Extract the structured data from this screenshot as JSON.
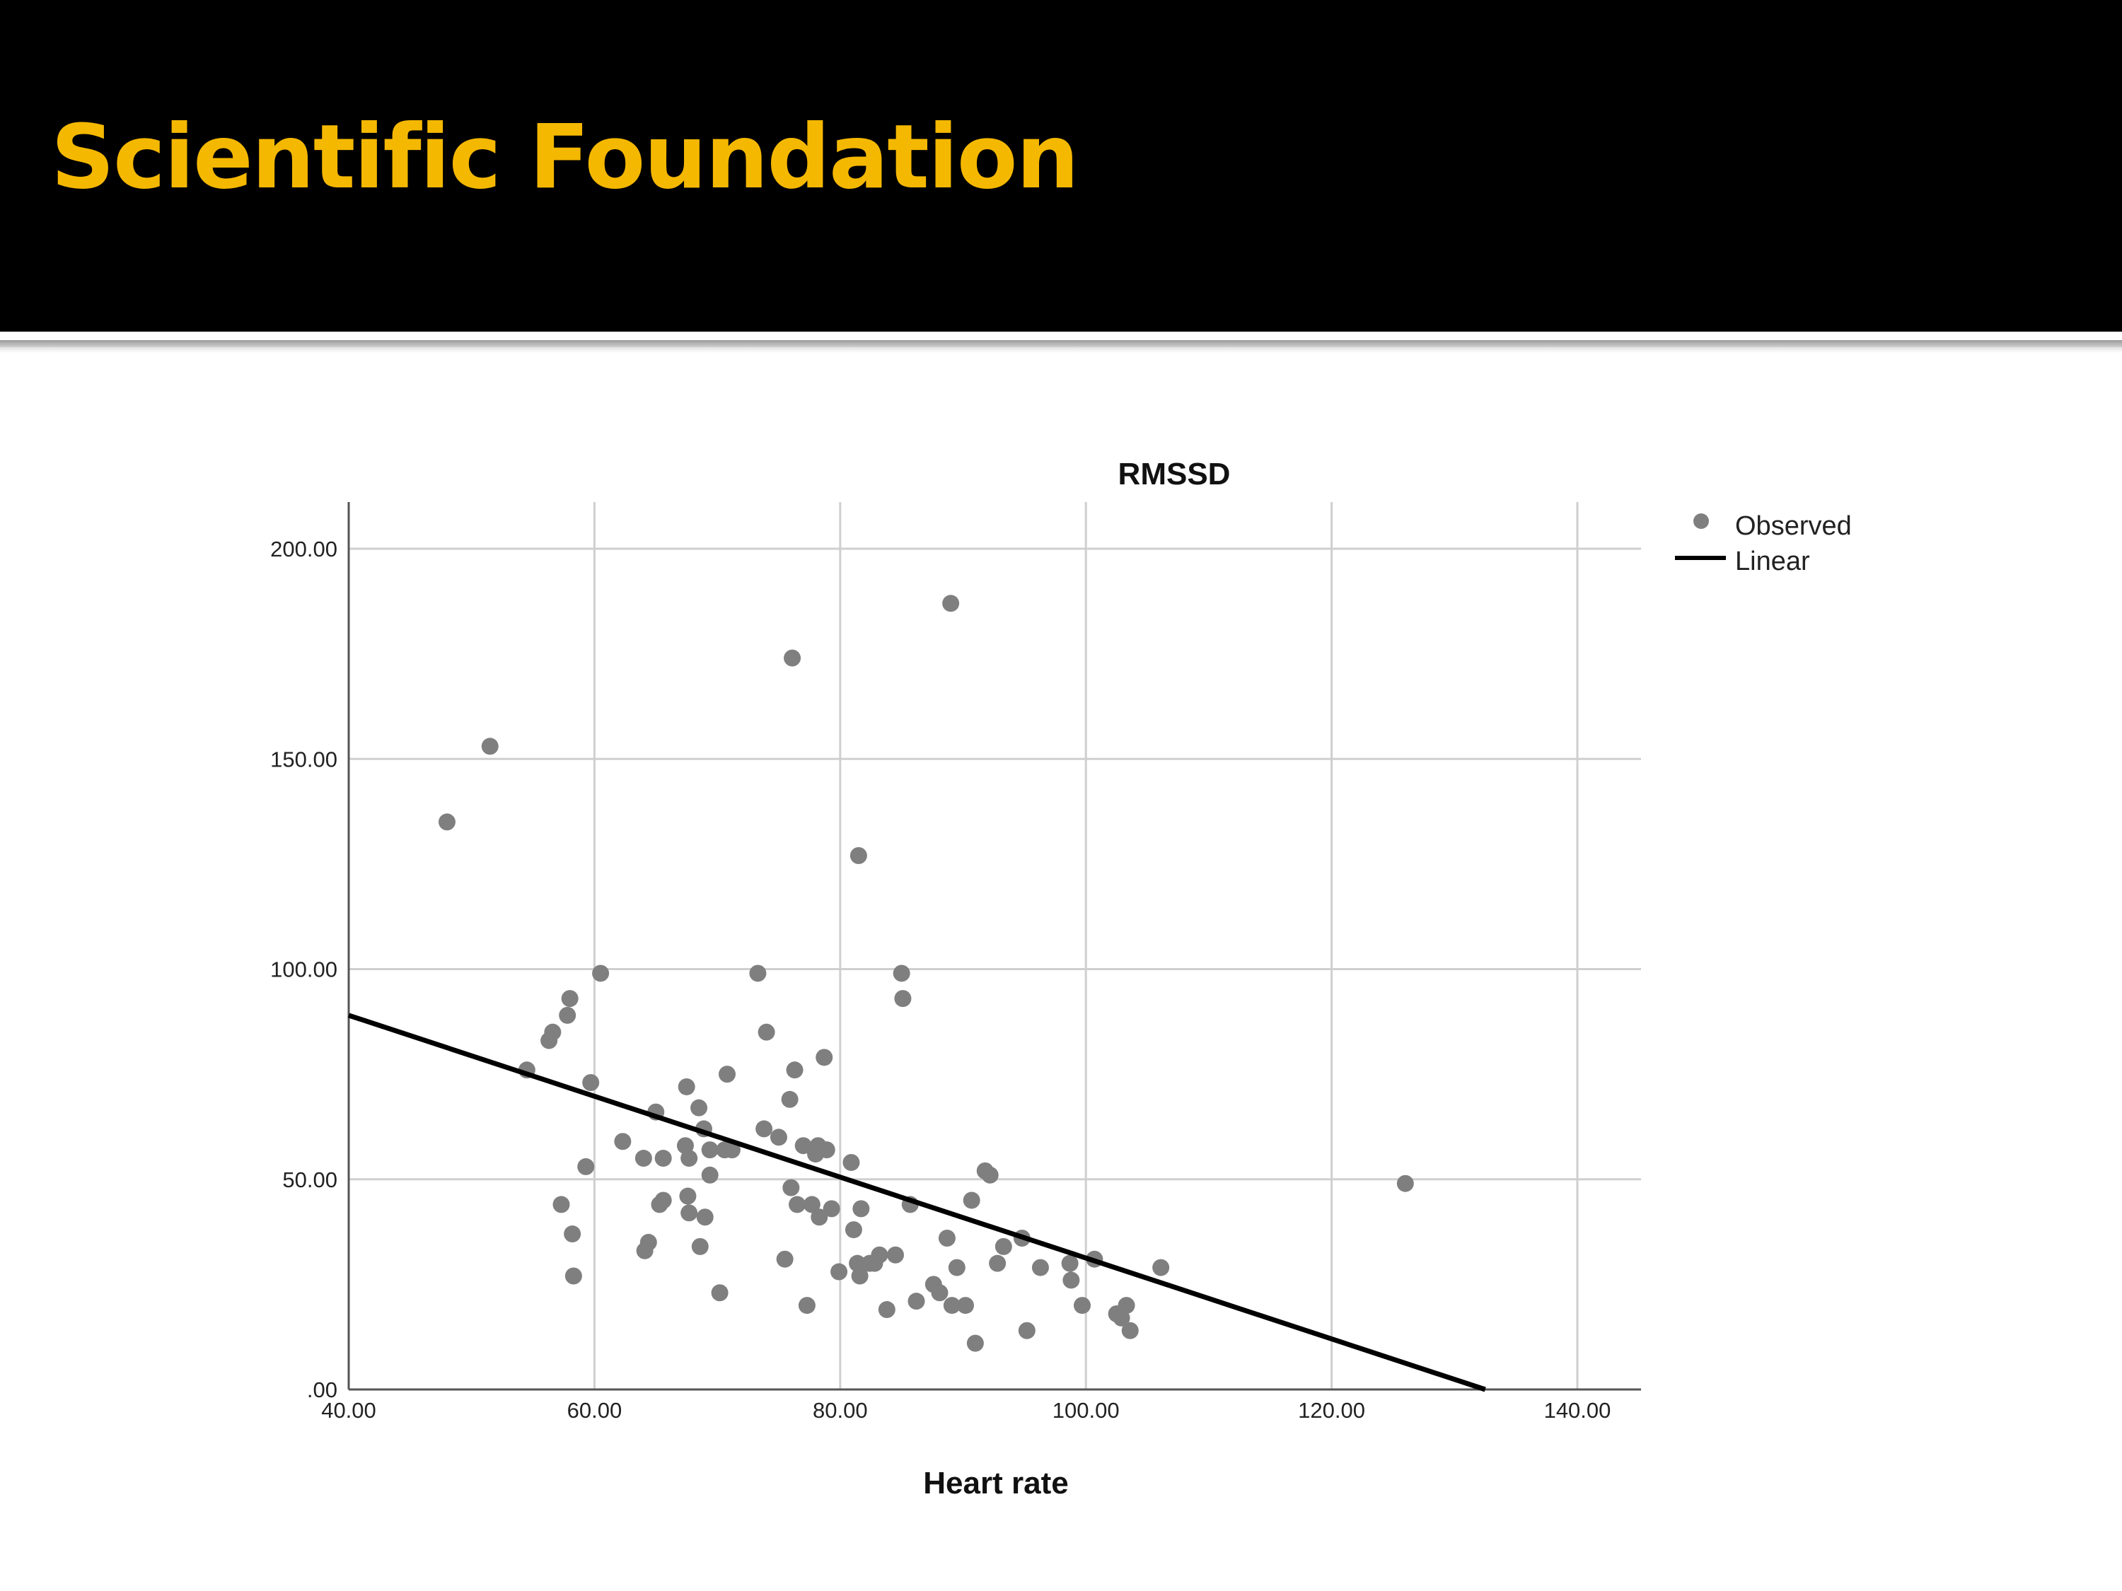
{
  "slide": {
    "title": "Scientific Foundation",
    "title_color": "#f5b800",
    "header_background": "#000000"
  },
  "chart_data": {
    "type": "scatter",
    "title": "RMSSD",
    "xlabel": "Heart rate",
    "ylabel": "",
    "xlim": [
      40,
      140
    ],
    "ylim": [
      0,
      210
    ],
    "x_ticks": [
      "40.00",
      "60.00",
      "80.00",
      "100.00",
      "120.00",
      "140.00"
    ],
    "y_ticks": [
      ".00",
      "50.00",
      "100.00",
      "150.00",
      "200.00"
    ],
    "grid": true,
    "legend_position": "top-right",
    "series": [
      {
        "name": "Observed",
        "kind": "scatter",
        "color": "#7f7f7f",
        "points": [
          [
            48,
            135
          ],
          [
            51.5,
            153
          ],
          [
            54.5,
            76
          ],
          [
            56.3,
            83
          ],
          [
            56.6,
            85
          ],
          [
            57.3,
            44
          ],
          [
            57.8,
            89
          ],
          [
            58,
            93
          ],
          [
            58.2,
            37
          ],
          [
            58.3,
            27
          ],
          [
            59.3,
            53
          ],
          [
            59.7,
            73
          ],
          [
            60.5,
            99
          ],
          [
            62.3,
            59
          ],
          [
            64,
            55
          ],
          [
            64.1,
            33
          ],
          [
            64.4,
            35
          ],
          [
            65,
            66
          ],
          [
            65.3,
            44
          ],
          [
            65.6,
            45
          ],
          [
            65.6,
            55
          ],
          [
            67.4,
            58
          ],
          [
            67.5,
            72
          ],
          [
            67.6,
            46
          ],
          [
            67.7,
            55
          ],
          [
            67.7,
            42
          ],
          [
            68.5,
            67
          ],
          [
            68.6,
            34
          ],
          [
            68.9,
            62
          ],
          [
            69,
            41
          ],
          [
            69.4,
            57
          ],
          [
            69.4,
            51
          ],
          [
            70.2,
            23
          ],
          [
            70.6,
            57
          ],
          [
            70.8,
            75
          ],
          [
            71.2,
            57
          ],
          [
            73.3,
            99
          ],
          [
            73.8,
            62
          ],
          [
            74,
            85
          ],
          [
            75,
            60
          ],
          [
            75.5,
            31
          ],
          [
            75.9,
            69
          ],
          [
            76,
            48
          ],
          [
            76.1,
            174
          ],
          [
            76.3,
            76
          ],
          [
            76.5,
            44
          ],
          [
            77,
            58
          ],
          [
            77.3,
            20
          ],
          [
            77.7,
            44
          ],
          [
            78,
            56
          ],
          [
            78.2,
            58
          ],
          [
            78.3,
            41
          ],
          [
            78.7,
            79
          ],
          [
            78.9,
            57
          ],
          [
            79.3,
            43
          ],
          [
            79.9,
            28
          ],
          [
            80.9,
            54
          ],
          [
            81.1,
            38
          ],
          [
            81.4,
            30
          ],
          [
            81.5,
            127
          ],
          [
            81.6,
            27
          ],
          [
            81.7,
            43
          ],
          [
            82.4,
            30
          ],
          [
            82.8,
            30
          ],
          [
            83.2,
            32
          ],
          [
            83.8,
            19
          ],
          [
            84.5,
            32
          ],
          [
            85,
            99
          ],
          [
            85.1,
            93
          ],
          [
            85.7,
            44
          ],
          [
            86.2,
            21
          ],
          [
            87.6,
            25
          ],
          [
            88.1,
            23
          ],
          [
            88.7,
            36
          ],
          [
            89,
            187
          ],
          [
            89.1,
            20
          ],
          [
            89.5,
            29
          ],
          [
            90.2,
            20
          ],
          [
            90.7,
            45
          ],
          [
            91,
            11
          ],
          [
            91.8,
            52
          ],
          [
            92.2,
            51
          ],
          [
            92.8,
            30
          ],
          [
            93.3,
            34
          ],
          [
            94.8,
            36
          ],
          [
            95.2,
            14
          ],
          [
            96.3,
            29
          ],
          [
            98.7,
            30
          ],
          [
            98.8,
            26
          ],
          [
            99.7,
            20
          ],
          [
            100.7,
            31
          ],
          [
            102.5,
            18
          ],
          [
            102.9,
            17
          ],
          [
            103.3,
            20
          ],
          [
            103.6,
            14
          ],
          [
            106.1,
            29
          ],
          [
            126,
            49
          ]
        ]
      },
      {
        "name": "Linear",
        "kind": "line",
        "color": "#000000",
        "x": [
          40,
          132.5
        ],
        "y": [
          89,
          0
        ]
      }
    ]
  }
}
